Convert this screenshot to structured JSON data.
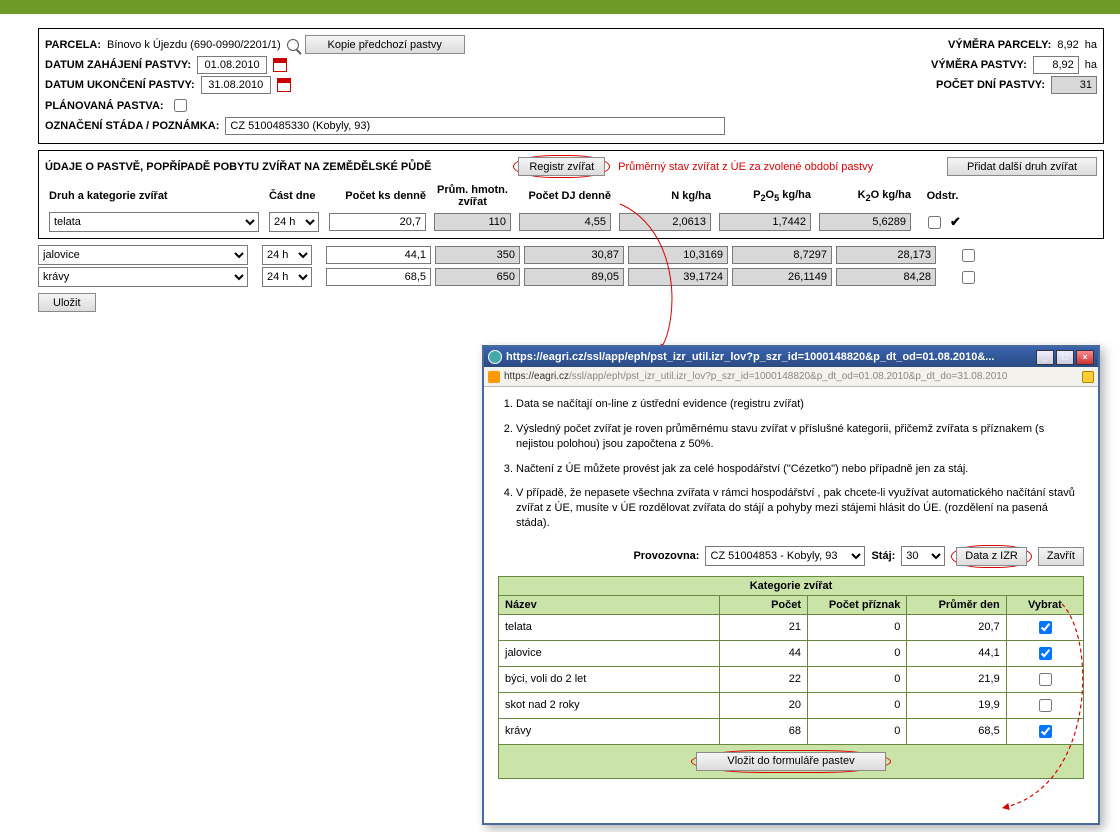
{
  "greenbar_color": "#6e9a28",
  "header": {
    "parcela_label": "PARCELA:",
    "parcela_value": "Bínovo k Újezdu (690-0990/2201/1)",
    "kopie_btn": "Kopie předchozí pastvy",
    "vymera_parcely_label": "VÝMĚRA PARCELY:",
    "vymera_parcely_value": "8,92",
    "ha": "ha",
    "datum_zahajeni_label": "DATUM ZAHÁJENÍ PASTVY:",
    "datum_zahajeni_value": "01.08.2010",
    "vymera_pastvy_label": "VÝMĚRA PASTVY:",
    "vymera_pastvy_value": "8,92",
    "datum_ukonceni_label": "DATUM UKONČENÍ PASTVY:",
    "datum_ukonceni_value": "31.08.2010",
    "pocet_dni_label": "POČET DNÍ PASTVY:",
    "pocet_dni_value": "31",
    "planovana_label": "PLÁNOVANÁ PASTVA:",
    "oznaceni_label": "OZNAČENÍ STÁDA / POZNÁMKA:",
    "oznaceni_value": "CZ 5100485330 (Kobyly, 93)"
  },
  "grid": {
    "title": "ÚDAJE O PASTVĚ, POPŘÍPADĚ POBYTU ZVÍŘAT NA ZEMĚDĚLSKÉ PŮDĚ",
    "registr_btn": "Registr zvířat",
    "note": "Průměrný stav zvířat z ÚE za zvolené období pastvy",
    "pridat_btn": "Přidat další druh zvířat",
    "col_druh": "Druh a kategorie zvířat",
    "col_cast": "Část dne",
    "col_pocet_ks": "Počet ks denně",
    "col_hmotn": "Prům. hmotn. zvířat",
    "col_dj": "Počet DJ denně",
    "col_n": "N kg/ha",
    "col_p": "P₂O₅ kg/ha",
    "col_k": "K₂O kg/ha",
    "col_odstr": "Odstr.",
    "rows": [
      {
        "druh": "telata",
        "cast": "24 h",
        "ks": "20,7",
        "hmotn": "110",
        "dj": "4,55",
        "n": "2,0613",
        "p": "1,7442",
        "k": "5,6289",
        "check": false,
        "tick": true
      },
      {
        "druh": "jalovice",
        "cast": "24 h",
        "ks": "44,1",
        "hmotn": "350",
        "dj": "30,87",
        "n": "10,3169",
        "p": "8,7297",
        "k": "28,173",
        "check": false,
        "tick": false
      },
      {
        "druh": "krávy",
        "cast": "24 h",
        "ks": "68,5",
        "hmotn": "650",
        "dj": "89,05",
        "n": "39,1724",
        "p": "26,1149",
        "k": "84,28",
        "check": false,
        "tick": false
      }
    ],
    "ulozit": "Uložit"
  },
  "popup": {
    "title_url": "https://eagri.cz/ssl/app/eph/pst_izr_util.izr_lov?p_szr_id=1000148820&p_dt_od=01.08.2010&...",
    "addr_dark": "https://eagri.cz",
    "addr_rest": "/ssl/app/eph/pst_izr_util.izr_lov?p_szr_id=1000148820&p_dt_od=01.08.2010&p_dt_do=31.08.2010",
    "bullets": [
      "Data se načítají on-line z ústřední evidence (registru zvířat)",
      "Výsledný počet zvířat je roven průměrnému stavu zvířat v příslušné kategorii, přičemž zvířata s příznakem (s nejistou polohou) jsou započtena z 50%.",
      "Načtení z ÚE můžete provést jak za celé hospodářství (\"Cézetko\") nebo případně jen za stáj.",
      "V případě, že nepasete všechna zvířata v rámci hospodářství , pak chcete-li využívat automatického načítání stavů zvířat z ÚE, musíte v ÚE rozdělovat zvířata do stájí a pohyby mezi stájemi hlásit do ÚE. (rozdělení na pasená stáda)."
    ],
    "provozovna_label": "Provozovna:",
    "provozovna_value": "CZ 51004853 - Kobyly, 93",
    "staj_label": "Stáj:",
    "staj_value": "30",
    "data_izr_btn": "Data z IZR",
    "zavrit_btn": "Zavřít",
    "kategorie_title": "Kategorie zvířat",
    "th_nazev": "Název",
    "th_pocet": "Počet",
    "th_priznak": "Počet příznak",
    "th_prumer": "Průměr den",
    "th_vybrat": "Vybrat",
    "rows": [
      {
        "nazev": "telata",
        "pocet": "21",
        "priznak": "0",
        "prumer": "20,7",
        "chk": true
      },
      {
        "nazev": "jalovice",
        "pocet": "44",
        "priznak": "0",
        "prumer": "44,1",
        "chk": true
      },
      {
        "nazev": "býci, voli do 2 let",
        "pocet": "22",
        "priznak": "0",
        "prumer": "21,9",
        "chk": false
      },
      {
        "nazev": "skot nad 2 roky",
        "pocet": "20",
        "priznak": "0",
        "prumer": "19,9",
        "chk": false
      },
      {
        "nazev": "krávy",
        "pocet": "68",
        "priznak": "0",
        "prumer": "68,5",
        "chk": true
      }
    ],
    "vlozit_btn": "Vložit do formuláře pastev"
  }
}
